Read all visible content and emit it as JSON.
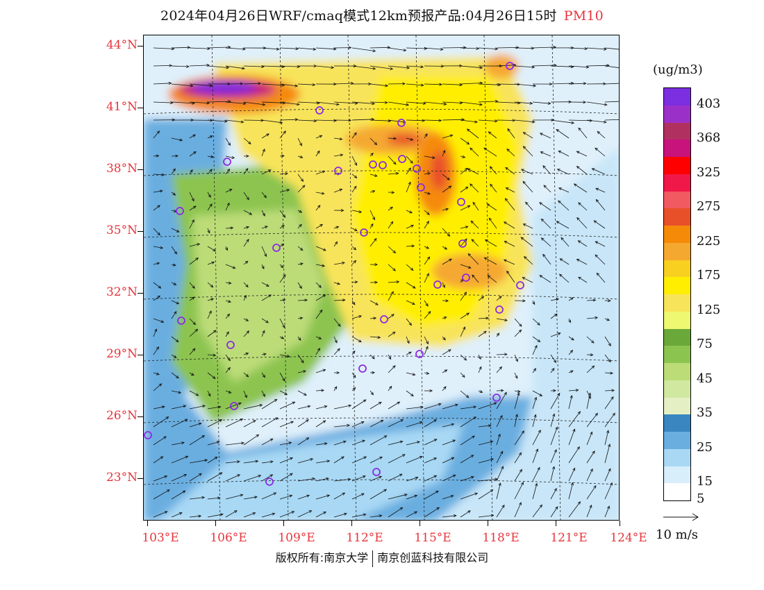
{
  "title": {
    "main": "2024年04月26日WRF/cmaq模式12km预报产品:04月26日15时",
    "pollutant": "PM10"
  },
  "map": {
    "lat_labels": [
      "44°N",
      "41°N",
      "38°N",
      "35°N",
      "32°N",
      "29°N",
      "26°N",
      "23°N"
    ],
    "lon_labels": [
      "103°E",
      "106°E",
      "109°E",
      "112°E",
      "115°E",
      "118°E",
      "121°E",
      "124°E"
    ],
    "city_marker_color": "#8a2be2",
    "city_count": 29
  },
  "legend": {
    "unit": "(ug/m3)",
    "bins": [
      {
        "color": "#7b2fe0",
        "label": "403"
      },
      {
        "color": "#9b30c8",
        "label": ""
      },
      {
        "color": "#b03060",
        "label": "368"
      },
      {
        "color": "#c8127c",
        "label": ""
      },
      {
        "color": "#ff0000",
        "label": "325"
      },
      {
        "color": "#f01848",
        "label": ""
      },
      {
        "color": "#f05a60",
        "label": "275"
      },
      {
        "color": "#e8502a",
        "label": ""
      },
      {
        "color": "#f58a08",
        "label": "225"
      },
      {
        "color": "#f5a830",
        "label": ""
      },
      {
        "color": "#f8d020",
        "label": "175"
      },
      {
        "color": "#ffee00",
        "label": ""
      },
      {
        "color": "#f8e45a",
        "label": "125"
      },
      {
        "color": "#eef870",
        "label": ""
      },
      {
        "color": "#6aa83a",
        "label": "75"
      },
      {
        "color": "#8cc450",
        "label": ""
      },
      {
        "color": "#bcdc78",
        "label": "45"
      },
      {
        "color": "#d0e8a0",
        "label": ""
      },
      {
        "color": "#e4f0c4",
        "label": "35"
      },
      {
        "color": "#3a86c0",
        "label": ""
      },
      {
        "color": "#6aaee0",
        "label": "25"
      },
      {
        "color": "#a8d8f4",
        "label": ""
      },
      {
        "color": "#d8eefa",
        "label": "15"
      },
      {
        "color": "#ffffff",
        "label": "5"
      }
    ]
  },
  "wind_reference": "10 m/s",
  "copyright": {
    "left": "版权所有:南京大学",
    "right": "南京创蓝科技有限公司"
  }
}
